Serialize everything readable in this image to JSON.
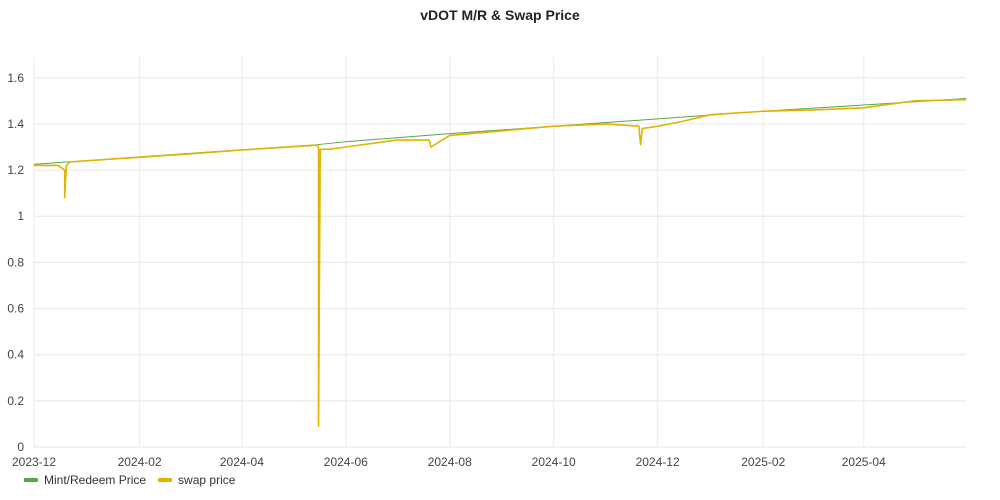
{
  "chart_data": {
    "type": "line",
    "title": "vDOT M/R & Swap Price",
    "xlabel": "",
    "ylabel": "",
    "x_ticks": [
      "2023-12",
      "2024-02",
      "2024-04",
      "2024-06",
      "2024-08",
      "2024-10",
      "2024-12",
      "2025-02",
      "2025-04"
    ],
    "y_ticks": [
      "0",
      "0.2",
      "0.4",
      "0.6",
      "0.8",
      "1",
      "1.2",
      "1.4",
      "1.6"
    ],
    "ylim": [
      0,
      1.69
    ],
    "xlim": [
      "2023-12-01",
      "2025-05-31"
    ],
    "grid": true,
    "legend_position": "bottom-left",
    "series": [
      {
        "name": "Mint/Redeem Price",
        "color": "#56a64b",
        "x": [
          "2023-12-01",
          "2024-02-01",
          "2024-04-01",
          "2024-05-15",
          "2024-06-01",
          "2024-08-01",
          "2024-10-01",
          "2024-12-01",
          "2025-02-01",
          "2025-04-01",
          "2025-05-31"
        ],
        "values": [
          1.225,
          1.257,
          1.288,
          1.31,
          1.323,
          1.358,
          1.39,
          1.422,
          1.455,
          1.482,
          1.51
        ]
      },
      {
        "name": "swap price",
        "color": "#e0b400",
        "x": [
          "2023-12-01",
          "2023-12-15",
          "2023-12-19",
          "2023-12-19",
          "2023-12-20",
          "2023-12-22",
          "2024-02-01",
          "2024-03-01",
          "2024-04-01",
          "2024-05-15",
          "2024-05-16",
          "2024-05-16",
          "2024-05-17",
          "2024-05-22",
          "2024-06-01",
          "2024-07-01",
          "2024-07-20",
          "2024-07-21",
          "2024-08-01",
          "2024-09-01",
          "2024-10-01",
          "2024-11-01",
          "2024-11-20",
          "2024-11-21",
          "2024-11-22",
          "2024-12-01",
          "2024-12-15",
          "2025-01-01",
          "2025-02-01",
          "2025-03-01",
          "2025-04-01",
          "2025-05-01",
          "2025-05-31"
        ],
        "values": [
          1.22,
          1.22,
          1.2,
          1.08,
          1.22,
          1.235,
          1.256,
          1.27,
          1.287,
          1.308,
          1.3,
          0.09,
          1.29,
          1.29,
          1.3,
          1.33,
          1.33,
          1.3,
          1.35,
          1.37,
          1.39,
          1.4,
          1.39,
          1.31,
          1.38,
          1.39,
          1.41,
          1.44,
          1.455,
          1.46,
          1.47,
          1.5,
          1.505
        ]
      }
    ]
  }
}
